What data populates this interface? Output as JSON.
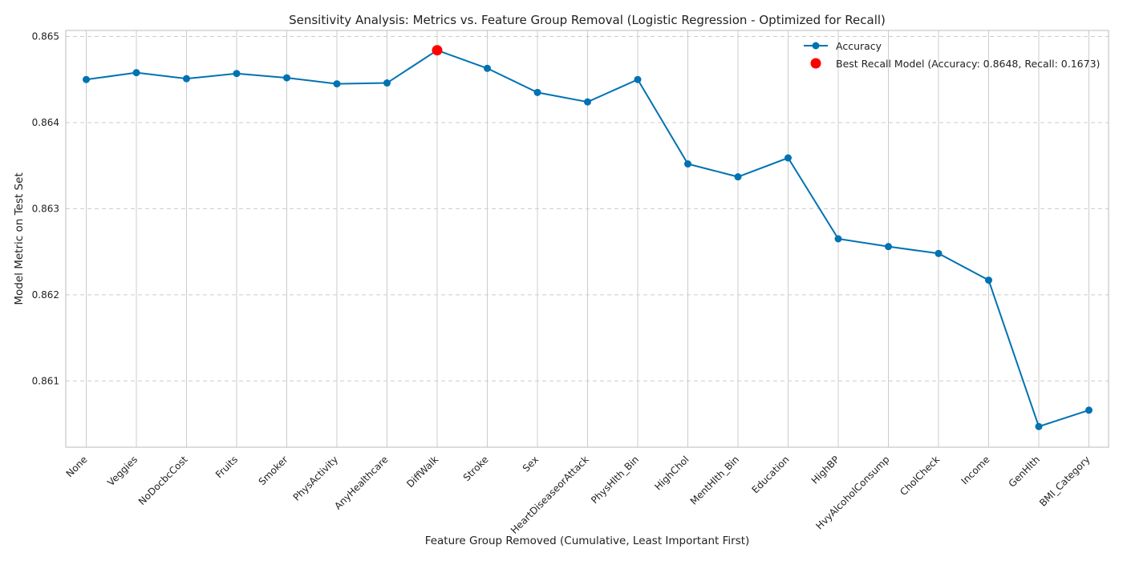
{
  "chart_data": {
    "type": "line",
    "title": "Sensitivity Analysis: Metrics vs. Feature Group Removal (Logistic Regression - Optimized for Recall)",
    "xlabel": "Feature Group Removed (Cumulative, Least Important First)",
    "ylabel": "Model Metric on Test Set",
    "categories": [
      "None",
      "Veggies",
      "NoDocbcCost",
      "Fruits",
      "Smoker",
      "PhysActivity",
      "AnyHealthcare",
      "DiffWalk",
      "Stroke",
      "Sex",
      "HeartDiseaseorAttack",
      "PhysHlth_Bin",
      "HighChol",
      "MentHlth_Bin",
      "Education",
      "HighBP",
      "HvyAlcoholConsump",
      "CholCheck",
      "Income",
      "GenHlth",
      "BMI_Category"
    ],
    "series": [
      {
        "name": "Accuracy",
        "values": [
          0.8645,
          0.86458,
          0.86451,
          0.86457,
          0.86452,
          0.86445,
          0.86446,
          0.86484,
          0.86463,
          0.86435,
          0.86424,
          0.8645,
          0.86352,
          0.86337,
          0.86359,
          0.86265,
          0.86256,
          0.86248,
          0.86217,
          0.86047,
          0.86066
        ]
      }
    ],
    "highlight": {
      "name": "Best Recall Model (Accuracy: 0.8648, Recall: 0.1673)",
      "category": "DiffWalk",
      "value": 0.86484
    },
    "ylim": [
      0.86023,
      0.86507
    ],
    "yticks": [
      "0.861",
      "0.862",
      "0.863",
      "0.864",
      "0.865"
    ],
    "ytick_values": [
      0.861,
      0.862,
      0.863,
      0.864,
      0.865
    ],
    "grid": true,
    "legend_position": "top-right",
    "colors": {
      "line": "#0072B2",
      "highlight": "#FF0000",
      "grid": "#CCCCCC",
      "axis": "#BBBBBB"
    }
  }
}
